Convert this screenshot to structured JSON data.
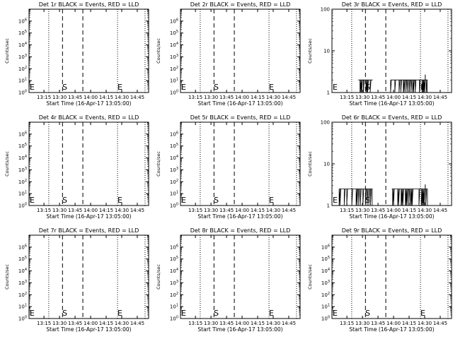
{
  "chart_data": [
    {
      "type": "line",
      "title": "Det 1r BLACK = Events, RED = LLD",
      "xlabel": "Start Time (16-Apr-17 13:05:00)",
      "ylabel": "Counts/sec",
      "yscale": "log",
      "ylim": [
        1,
        10000000
      ],
      "ytick_exps": [
        0,
        1,
        2,
        3,
        4,
        5,
        6
      ],
      "xlim_min": [
        0,
        100
      ],
      "xticks": [
        "13:15",
        "13:30",
        "13:45",
        "14:00",
        "14:15",
        "14:30",
        "14:45"
      ],
      "markers": {
        "start_label": "S",
        "end_label": "E"
      },
      "series": []
    },
    {
      "type": "line",
      "title": "Det 2r BLACK = Events, RED = LLD",
      "xlabel": "Start Time (16-Apr-17 13:05:00)",
      "ylabel": "Counts/sec",
      "yscale": "log",
      "ylim": [
        1,
        10000000
      ],
      "ytick_exps": [
        0,
        1,
        2,
        3,
        4,
        5,
        6
      ],
      "xlim_min": [
        0,
        100
      ],
      "xticks": [
        "13:15",
        "13:30",
        "13:45",
        "14:00",
        "14:15",
        "14:30",
        "14:45"
      ],
      "markers": {
        "start_label": "S",
        "end_label": "E"
      },
      "series": []
    },
    {
      "type": "line",
      "title": "Det 3r BLACK = Events, RED = LLD",
      "xlabel": "Start Time (16-Apr-17 13:05:00)",
      "ylabel": "Counts/sec",
      "yscale": "log",
      "ylim": [
        1,
        100
      ],
      "ytick_vals": [
        "1",
        "10",
        "100"
      ],
      "xlim_min": [
        0,
        100
      ],
      "xticks": [
        "13:15",
        "13:30",
        "13:45",
        "14:00",
        "14:15",
        "14:30",
        "14:45"
      ],
      "markers": {
        "start_label": "S",
        "end_label": "E"
      },
      "series": [
        {
          "segments": [
            [
              22,
              34
            ],
            [
              49,
              80
            ]
          ],
          "level": 2,
          "spike": 2.7
        }
      ]
    },
    {
      "type": "line",
      "title": "Det 4r BLACK = Events, RED = LLD",
      "xlabel": "Start Time (16-Apr-17 13:05:00)",
      "ylabel": "Counts/sec",
      "yscale": "log",
      "ylim": [
        1,
        10000000
      ],
      "ytick_exps": [
        0,
        1,
        2,
        3,
        4,
        5,
        6
      ],
      "xlim_min": [
        0,
        100
      ],
      "xticks": [
        "13:15",
        "13:30",
        "13:45",
        "14:00",
        "14:15",
        "14:30",
        "14:45"
      ],
      "markers": {
        "start_label": "S",
        "end_label": "E"
      },
      "series": []
    },
    {
      "type": "line",
      "title": "Det 5r BLACK = Events, RED = LLD",
      "xlabel": "Start Time (16-Apr-17 13:05:00)",
      "ylabel": "Counts/sec",
      "yscale": "log",
      "ylim": [
        1,
        10000000
      ],
      "ytick_exps": [
        0,
        1,
        2,
        3,
        4,
        5,
        6
      ],
      "xlim_min": [
        0,
        100
      ],
      "xticks": [
        "13:15",
        "13:30",
        "13:45",
        "14:00",
        "14:15",
        "14:30",
        "14:45"
      ],
      "markers": {
        "start_label": "S",
        "end_label": "E"
      },
      "series": []
    },
    {
      "type": "line",
      "title": "Det 6r BLACK = Events, RED = LLD",
      "xlabel": "Start Time (16-Apr-17 13:05:00)",
      "ylabel": "Counts/sec",
      "yscale": "log",
      "ylim": [
        1,
        100
      ],
      "ytick_vals": [
        "1",
        "10",
        "100"
      ],
      "xlim_min": [
        0,
        100
      ],
      "xticks": [
        "13:15",
        "13:30",
        "13:45",
        "14:00",
        "14:15",
        "14:30",
        "14:45"
      ],
      "markers": {
        "start_label": "S",
        "end_label": "E"
      },
      "series": [
        {
          "segments": [
            [
              6,
              34
            ],
            [
              50,
              80
            ]
          ],
          "level": 2.5,
          "spike": 3.2
        }
      ]
    },
    {
      "type": "line",
      "title": "Det 7r BLACK = Events, RED = LLD",
      "xlabel": "Start Time (16-Apr-17 13:05:00)",
      "ylabel": "Counts/sec",
      "yscale": "log",
      "ylim": [
        1,
        10000000
      ],
      "ytick_exps": [
        0,
        1,
        2,
        3,
        4,
        5,
        6
      ],
      "xlim_min": [
        0,
        100
      ],
      "xticks": [
        "13:15",
        "13:30",
        "13:45",
        "14:00",
        "14:15",
        "14:30",
        "14:45"
      ],
      "markers": {
        "start_label": "S",
        "end_label": "E"
      },
      "series": []
    },
    {
      "type": "line",
      "title": "Det 8r BLACK = Events, RED = LLD",
      "xlabel": "Start Time (16-Apr-17 13:05:00)",
      "ylabel": "Counts/sec",
      "yscale": "log",
      "ylim": [
        1,
        10000000
      ],
      "ytick_exps": [
        0,
        1,
        2,
        3,
        4,
        5,
        6
      ],
      "xlim_min": [
        0,
        100
      ],
      "xticks": [
        "13:15",
        "13:30",
        "13:45",
        "14:00",
        "14:15",
        "14:30",
        "14:45"
      ],
      "markers": {
        "start_label": "S",
        "end_label": "E"
      },
      "series": []
    },
    {
      "type": "line",
      "title": "Det 9r BLACK = Events, RED = LLD",
      "xlabel": "Start Time (16-Apr-17 13:05:00)",
      "ylabel": "Counts/sec",
      "yscale": "log",
      "ylim": [
        1,
        10000000
      ],
      "ytick_exps": [
        0,
        1,
        2,
        3,
        4,
        5,
        6
      ],
      "xlim_min": [
        0,
        100
      ],
      "xticks": [
        "13:15",
        "13:30",
        "13:45",
        "14:00",
        "14:15",
        "14:30",
        "14:45"
      ],
      "markers": {
        "start_label": "S",
        "end_label": "E"
      },
      "series": []
    }
  ]
}
